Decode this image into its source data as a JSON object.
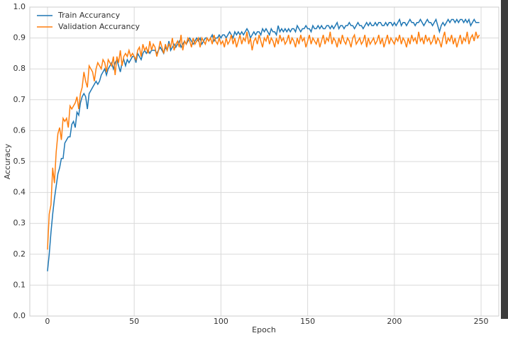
{
  "chart_data": {
    "type": "line",
    "xlabel": "Epoch",
    "ylabel": "Accuracy",
    "x": [
      0,
      1,
      2,
      3,
      4,
      5,
      6,
      7,
      8,
      9,
      10,
      11,
      12,
      13,
      14,
      15,
      16,
      17,
      18,
      19,
      20,
      21,
      22,
      23,
      24,
      25,
      26,
      27,
      28,
      29,
      30,
      31,
      32,
      33,
      34,
      35,
      36,
      37,
      38,
      39,
      40,
      41,
      42,
      43,
      44,
      45,
      46,
      47,
      48,
      49,
      50,
      51,
      52,
      53,
      54,
      55,
      56,
      57,
      58,
      59,
      60,
      61,
      62,
      63,
      64,
      65,
      66,
      67,
      68,
      69,
      70,
      71,
      72,
      73,
      74,
      75,
      76,
      77,
      78,
      79,
      80,
      81,
      82,
      83,
      84,
      85,
      86,
      87,
      88,
      89,
      90,
      91,
      92,
      93,
      94,
      95,
      96,
      97,
      98,
      99,
      100,
      101,
      102,
      103,
      104,
      105,
      106,
      107,
      108,
      109,
      110,
      111,
      112,
      113,
      114,
      115,
      116,
      117,
      118,
      119,
      120,
      121,
      122,
      123,
      124,
      125,
      126,
      127,
      128,
      129,
      130,
      131,
      132,
      133,
      134,
      135,
      136,
      137,
      138,
      139,
      140,
      141,
      142,
      143,
      144,
      145,
      146,
      147,
      148,
      149,
      150,
      151,
      152,
      153,
      154,
      155,
      156,
      157,
      158,
      159,
      160,
      161,
      162,
      163,
      164,
      165,
      166,
      167,
      168,
      169,
      170,
      171,
      172,
      173,
      174,
      175,
      176,
      177,
      178,
      179,
      180,
      181,
      182,
      183,
      184,
      185,
      186,
      187,
      188,
      189,
      190,
      191,
      192,
      193,
      194,
      195,
      196,
      197,
      198,
      199,
      200,
      201,
      202,
      203,
      204,
      205,
      206,
      207,
      208,
      209,
      210,
      211,
      212,
      213,
      214,
      215,
      216,
      217,
      218,
      219,
      220,
      221,
      222,
      223,
      224,
      225,
      226,
      227,
      228,
      229,
      230,
      231,
      232,
      233,
      234,
      235,
      236,
      237,
      238,
      239,
      240,
      241,
      242,
      243,
      244,
      245,
      246,
      247,
      248,
      249
    ],
    "series": [
      {
        "name": "Train Accurancy",
        "color": "#1f77b4",
        "values": [
          0.145,
          0.2,
          0.27,
          0.33,
          0.38,
          0.42,
          0.46,
          0.48,
          0.51,
          0.51,
          0.56,
          0.57,
          0.58,
          0.58,
          0.62,
          0.63,
          0.61,
          0.66,
          0.65,
          0.69,
          0.71,
          0.72,
          0.71,
          0.67,
          0.72,
          0.73,
          0.74,
          0.75,
          0.76,
          0.75,
          0.76,
          0.78,
          0.79,
          0.8,
          0.78,
          0.8,
          0.81,
          0.82,
          0.8,
          0.82,
          0.83,
          0.81,
          0.79,
          0.82,
          0.83,
          0.81,
          0.83,
          0.82,
          0.83,
          0.84,
          0.84,
          0.82,
          0.85,
          0.84,
          0.83,
          0.85,
          0.86,
          0.85,
          0.86,
          0.85,
          0.86,
          0.86,
          0.86,
          0.85,
          0.86,
          0.87,
          0.86,
          0.85,
          0.87,
          0.86,
          0.89,
          0.86,
          0.87,
          0.88,
          0.87,
          0.88,
          0.89,
          0.87,
          0.88,
          0.89,
          0.88,
          0.89,
          0.9,
          0.89,
          0.88,
          0.89,
          0.9,
          0.89,
          0.9,
          0.88,
          0.89,
          0.9,
          0.9,
          0.89,
          0.9,
          0.91,
          0.89,
          0.9,
          0.9,
          0.91,
          0.9,
          0.91,
          0.91,
          0.9,
          0.91,
          0.92,
          0.91,
          0.9,
          0.92,
          0.91,
          0.92,
          0.91,
          0.92,
          0.91,
          0.92,
          0.93,
          0.92,
          0.9,
          0.91,
          0.92,
          0.91,
          0.92,
          0.92,
          0.91,
          0.93,
          0.92,
          0.93,
          0.92,
          0.91,
          0.93,
          0.92,
          0.92,
          0.91,
          0.94,
          0.92,
          0.93,
          0.92,
          0.93,
          0.92,
          0.93,
          0.92,
          0.93,
          0.93,
          0.92,
          0.94,
          0.93,
          0.92,
          0.93,
          0.93,
          0.94,
          0.93,
          0.93,
          0.92,
          0.94,
          0.93,
          0.93,
          0.94,
          0.93,
          0.94,
          0.93,
          0.93,
          0.94,
          0.94,
          0.93,
          0.94,
          0.93,
          0.94,
          0.95,
          0.93,
          0.94,
          0.94,
          0.93,
          0.94,
          0.94,
          0.95,
          0.94,
          0.94,
          0.93,
          0.94,
          0.95,
          0.94,
          0.94,
          0.93,
          0.94,
          0.95,
          0.94,
          0.95,
          0.94,
          0.94,
          0.95,
          0.94,
          0.95,
          0.95,
          0.94,
          0.94,
          0.95,
          0.94,
          0.95,
          0.95,
          0.94,
          0.95,
          0.94,
          0.95,
          0.96,
          0.94,
          0.95,
          0.95,
          0.94,
          0.95,
          0.96,
          0.95,
          0.95,
          0.94,
          0.95,
          0.95,
          0.96,
          0.95,
          0.94,
          0.95,
          0.96,
          0.95,
          0.95,
          0.94,
          0.95,
          0.96,
          0.94,
          0.92,
          0.94,
          0.95,
          0.94,
          0.95,
          0.96,
          0.95,
          0.96,
          0.96,
          0.95,
          0.96,
          0.95,
          0.96,
          0.96,
          0.95,
          0.96,
          0.95,
          0.96,
          0.94,
          0.95,
          0.96,
          0.95,
          0.95,
          0.95
        ]
      },
      {
        "name": "Validation Accurancy",
        "color": "#ff7f0e",
        "values": [
          0.215,
          0.33,
          0.36,
          0.48,
          0.43,
          0.53,
          0.59,
          0.61,
          0.57,
          0.64,
          0.63,
          0.64,
          0.61,
          0.68,
          0.67,
          0.68,
          0.69,
          0.71,
          0.67,
          0.72,
          0.74,
          0.79,
          0.76,
          0.74,
          0.81,
          0.8,
          0.79,
          0.76,
          0.8,
          0.82,
          0.81,
          0.8,
          0.83,
          0.82,
          0.79,
          0.83,
          0.82,
          0.81,
          0.84,
          0.78,
          0.84,
          0.82,
          0.86,
          0.81,
          0.84,
          0.85,
          0.84,
          0.86,
          0.84,
          0.85,
          0.84,
          0.83,
          0.86,
          0.87,
          0.84,
          0.88,
          0.86,
          0.87,
          0.85,
          0.89,
          0.86,
          0.88,
          0.87,
          0.84,
          0.86,
          0.89,
          0.87,
          0.85,
          0.88,
          0.86,
          0.88,
          0.87,
          0.9,
          0.86,
          0.88,
          0.89,
          0.87,
          0.91,
          0.86,
          0.89,
          0.88,
          0.9,
          0.89,
          0.87,
          0.9,
          0.88,
          0.89,
          0.9,
          0.87,
          0.9,
          0.89,
          0.88,
          0.9,
          0.89,
          0.9,
          0.88,
          0.91,
          0.89,
          0.88,
          0.9,
          0.88,
          0.89,
          0.87,
          0.9,
          0.88,
          0.89,
          0.91,
          0.88,
          0.9,
          0.87,
          0.89,
          0.91,
          0.88,
          0.9,
          0.89,
          0.92,
          0.88,
          0.9,
          0.86,
          0.89,
          0.9,
          0.88,
          0.91,
          0.89,
          0.87,
          0.9,
          0.89,
          0.91,
          0.88,
          0.9,
          0.89,
          0.87,
          0.9,
          0.88,
          0.91,
          0.89,
          0.9,
          0.88,
          0.89,
          0.91,
          0.88,
          0.9,
          0.89,
          0.87,
          0.9,
          0.88,
          0.91,
          0.89,
          0.9,
          0.87,
          0.89,
          0.91,
          0.88,
          0.9,
          0.89,
          0.88,
          0.9,
          0.87,
          0.89,
          0.91,
          0.88,
          0.9,
          0.89,
          0.92,
          0.88,
          0.9,
          0.89,
          0.87,
          0.9,
          0.88,
          0.91,
          0.89,
          0.88,
          0.9,
          0.89,
          0.87,
          0.9,
          0.91,
          0.88,
          0.89,
          0.9,
          0.88,
          0.89,
          0.91,
          0.87,
          0.9,
          0.88,
          0.89,
          0.9,
          0.88,
          0.89,
          0.91,
          0.88,
          0.9,
          0.87,
          0.89,
          0.91,
          0.88,
          0.9,
          0.89,
          0.88,
          0.9,
          0.89,
          0.91,
          0.88,
          0.9,
          0.89,
          0.87,
          0.9,
          0.88,
          0.91,
          0.89,
          0.9,
          0.88,
          0.92,
          0.89,
          0.9,
          0.88,
          0.91,
          0.89,
          0.9,
          0.88,
          0.89,
          0.91,
          0.88,
          0.9,
          0.89,
          0.87,
          0.9,
          0.92,
          0.88,
          0.9,
          0.89,
          0.91,
          0.88,
          0.9,
          0.87,
          0.89,
          0.91,
          0.88,
          0.9,
          0.89,
          0.92,
          0.88,
          0.9,
          0.91,
          0.89,
          0.92,
          0.9,
          0.91
        ]
      }
    ],
    "xlim": [
      -10.2,
      260.2
    ],
    "xticks": [
      0,
      50,
      100,
      150,
      200,
      250
    ],
    "ylim": [
      0,
      1
    ],
    "yticks": [
      {
        "value": 0,
        "label": "0.0"
      },
      0.1,
      0.2,
      0.3,
      0.4,
      0.5,
      0.6,
      0.7,
      0.8,
      0.9,
      {
        "value": 1,
        "label": "1.0"
      }
    ],
    "grid": true,
    "legend": "upper-left"
  }
}
